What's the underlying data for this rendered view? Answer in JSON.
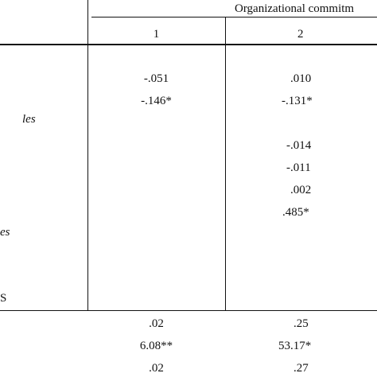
{
  "header": {
    "group_title": "Organizational commitm",
    "columns": [
      "1",
      "2"
    ]
  },
  "row_labels": {
    "label_a": "les",
    "label_b": "es",
    "label_c": "S"
  },
  "body": {
    "col1": [
      "-.051",
      "-.146*"
    ],
    "col2": [
      ".010",
      "-.131*",
      "-.014",
      "-.011",
      ".002",
      ".485*"
    ]
  },
  "footer": {
    "col1": [
      ".02",
      "6.08**",
      ".02"
    ],
    "col2": [
      ".25",
      "53.17*",
      ".27"
    ]
  }
}
